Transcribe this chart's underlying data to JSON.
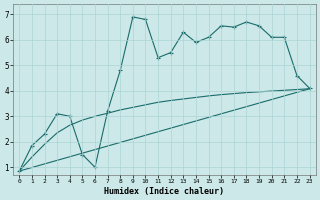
{
  "xlabel": "Humidex (Indice chaleur)",
  "background_color": "#cce8e8",
  "line_color": "#1a6b6b",
  "xlim": [
    -0.5,
    23.5
  ],
  "ylim": [
    0.7,
    7.4
  ],
  "xticks": [
    0,
    1,
    2,
    3,
    4,
    5,
    6,
    7,
    8,
    9,
    10,
    11,
    12,
    13,
    14,
    15,
    16,
    17,
    18,
    19,
    20,
    21,
    22,
    23
  ],
  "yticks": [
    1,
    2,
    3,
    4,
    5,
    6,
    7
  ],
  "line1_x": [
    0,
    1,
    2,
    3,
    4,
    5,
    6,
    7,
    8,
    9,
    10,
    11,
    12,
    13,
    14,
    15,
    16,
    17,
    18,
    19,
    20,
    21,
    22,
    23
  ],
  "line1_y": [
    0.85,
    1.85,
    2.3,
    3.1,
    3.0,
    1.5,
    1.0,
    3.2,
    4.8,
    6.9,
    6.8,
    5.3,
    5.5,
    6.3,
    5.9,
    6.1,
    6.55,
    6.5,
    6.7,
    6.55,
    6.1,
    6.1,
    4.6,
    4.1
  ],
  "line2_x": [
    0,
    1,
    2,
    3,
    4,
    5,
    6,
    7,
    8,
    9,
    10,
    11,
    12,
    13,
    14,
    15,
    16,
    17,
    18,
    19,
    20,
    21,
    22,
    23
  ],
  "line2_y": [
    0.85,
    1.4,
    1.9,
    2.35,
    2.65,
    2.85,
    3.0,
    3.12,
    3.25,
    3.35,
    3.45,
    3.55,
    3.62,
    3.68,
    3.74,
    3.8,
    3.85,
    3.89,
    3.93,
    3.96,
    3.99,
    4.02,
    4.05,
    4.08
  ],
  "line3_x": [
    0,
    23
  ],
  "line3_y": [
    0.85,
    4.08
  ]
}
